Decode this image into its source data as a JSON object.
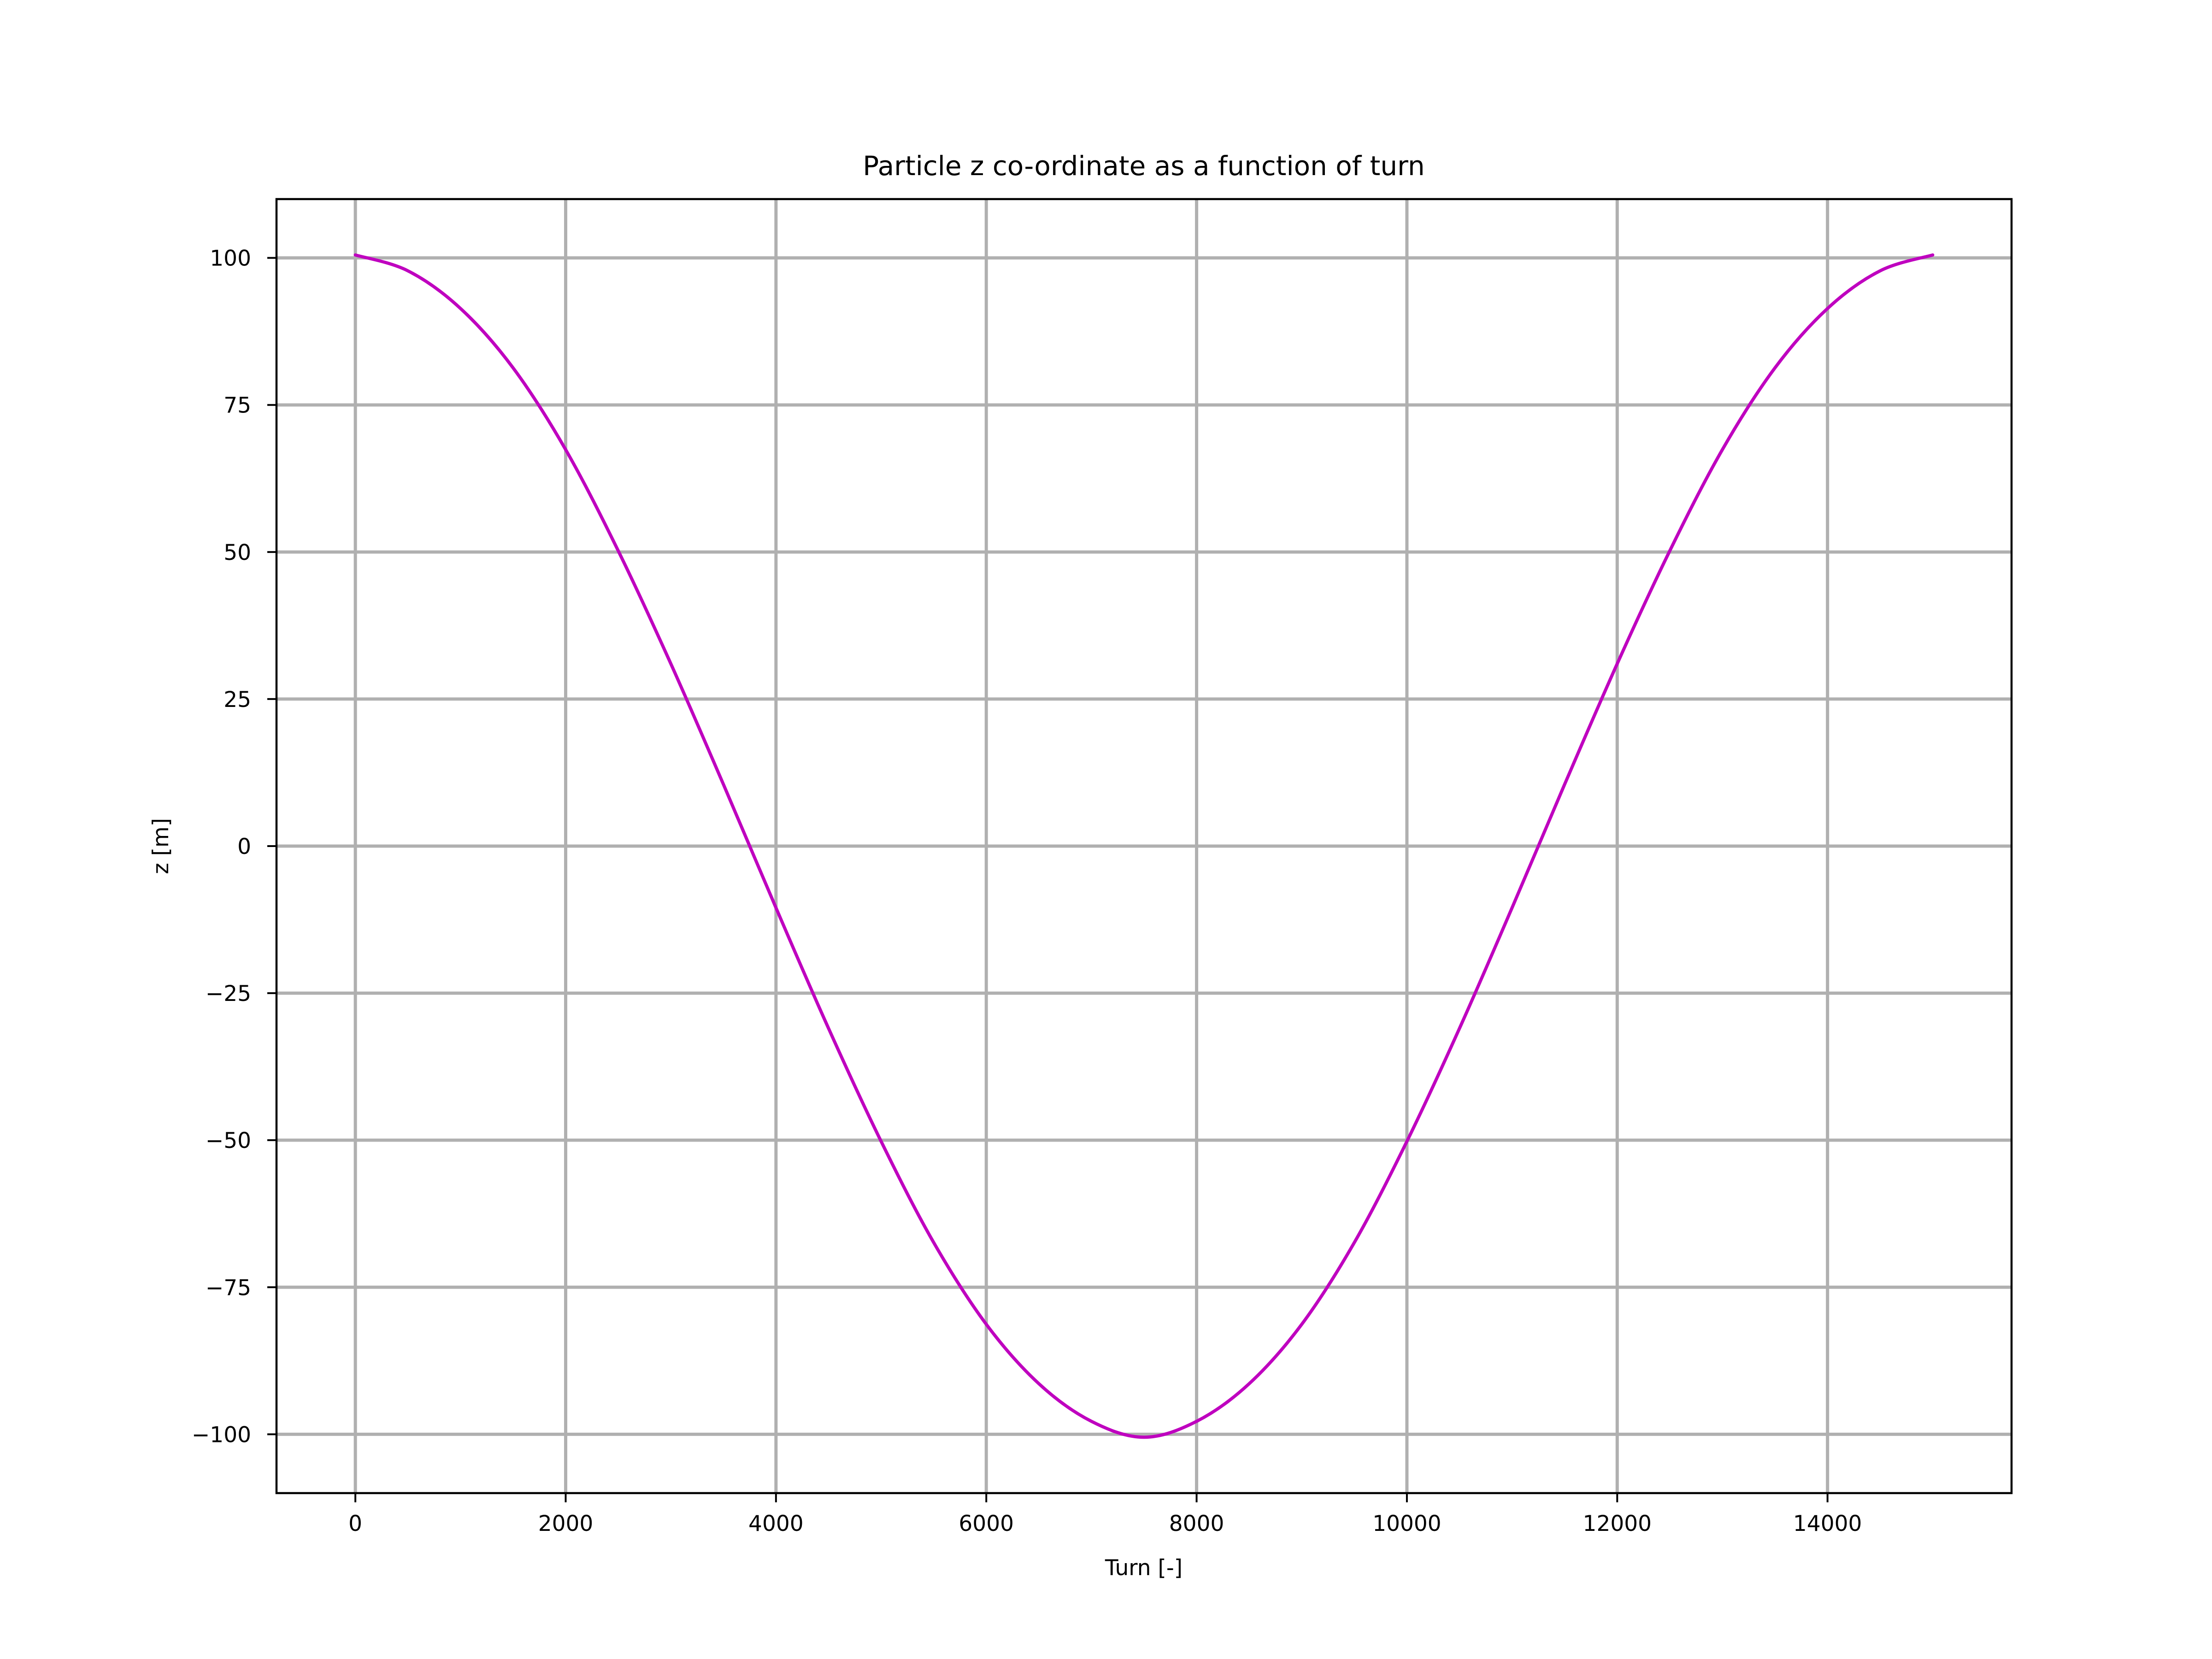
{
  "chart_data": {
    "type": "line",
    "title": "Particle z co-ordinate as a function of turn",
    "xlabel": "Turn [-]",
    "ylabel": "z [m]",
    "xlim": [
      -750,
      15750
    ],
    "ylim": [
      -110,
      110
    ],
    "xticks": [
      0,
      2000,
      4000,
      6000,
      8000,
      10000,
      12000,
      14000
    ],
    "xtick_labels": [
      "0",
      "2000",
      "4000",
      "6000",
      "8000",
      "10000",
      "12000",
      "14000"
    ],
    "yticks": [
      100,
      75,
      50,
      25,
      0,
      -25,
      -50,
      -75,
      -100
    ],
    "ytick_labels": [
      "100",
      "75",
      "50",
      "25",
      "0",
      "−25",
      "−50",
      "−75",
      "−100"
    ],
    "grid": true,
    "series": [
      {
        "color": "#bf00bf",
        "x": [
          0,
          500,
          1000,
          1500,
          2000,
          2500,
          3000,
          3500,
          4000,
          4500,
          5000,
          5500,
          6000,
          6500,
          7000,
          7500,
          8000,
          8500,
          9000,
          9500,
          10000,
          10500,
          11000,
          11500,
          12000,
          12500,
          13000,
          13500,
          14000,
          14500,
          15000
        ],
        "y": [
          100.5,
          97.8,
          91.4,
          81.3,
          67.4,
          50.2,
          31.0,
          10.5,
          -10.5,
          -31.0,
          -50.2,
          -67.4,
          -81.3,
          -91.4,
          -97.8,
          -100.5,
          -97.8,
          -91.4,
          -81.3,
          -67.4,
          -50.2,
          -31.0,
          -10.5,
          10.5,
          31.0,
          50.2,
          67.4,
          81.3,
          91.4,
          97.8,
          100.5
        ]
      }
    ]
  }
}
